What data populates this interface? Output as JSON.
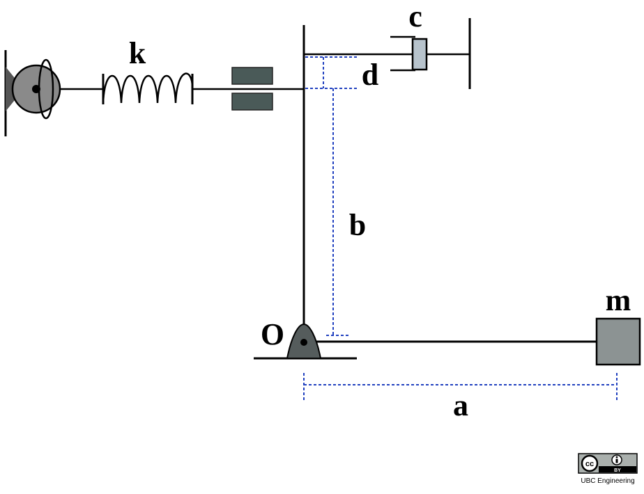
{
  "labels": {
    "spring": "k",
    "damper": "c",
    "offset": "d",
    "height": "b",
    "pivot": "O",
    "mass": "m",
    "arm_length": "a"
  },
  "license": {
    "cc_text": "cc",
    "by_text": "BY",
    "credit": "UBC Engineering"
  },
  "colors": {
    "line": "#000000",
    "dimension": "#1f3fbf",
    "wheel": "#8a8a8a",
    "mass": "#8c9393",
    "damper_piston": "#b7c3cc",
    "pads": "#4a5a58"
  }
}
